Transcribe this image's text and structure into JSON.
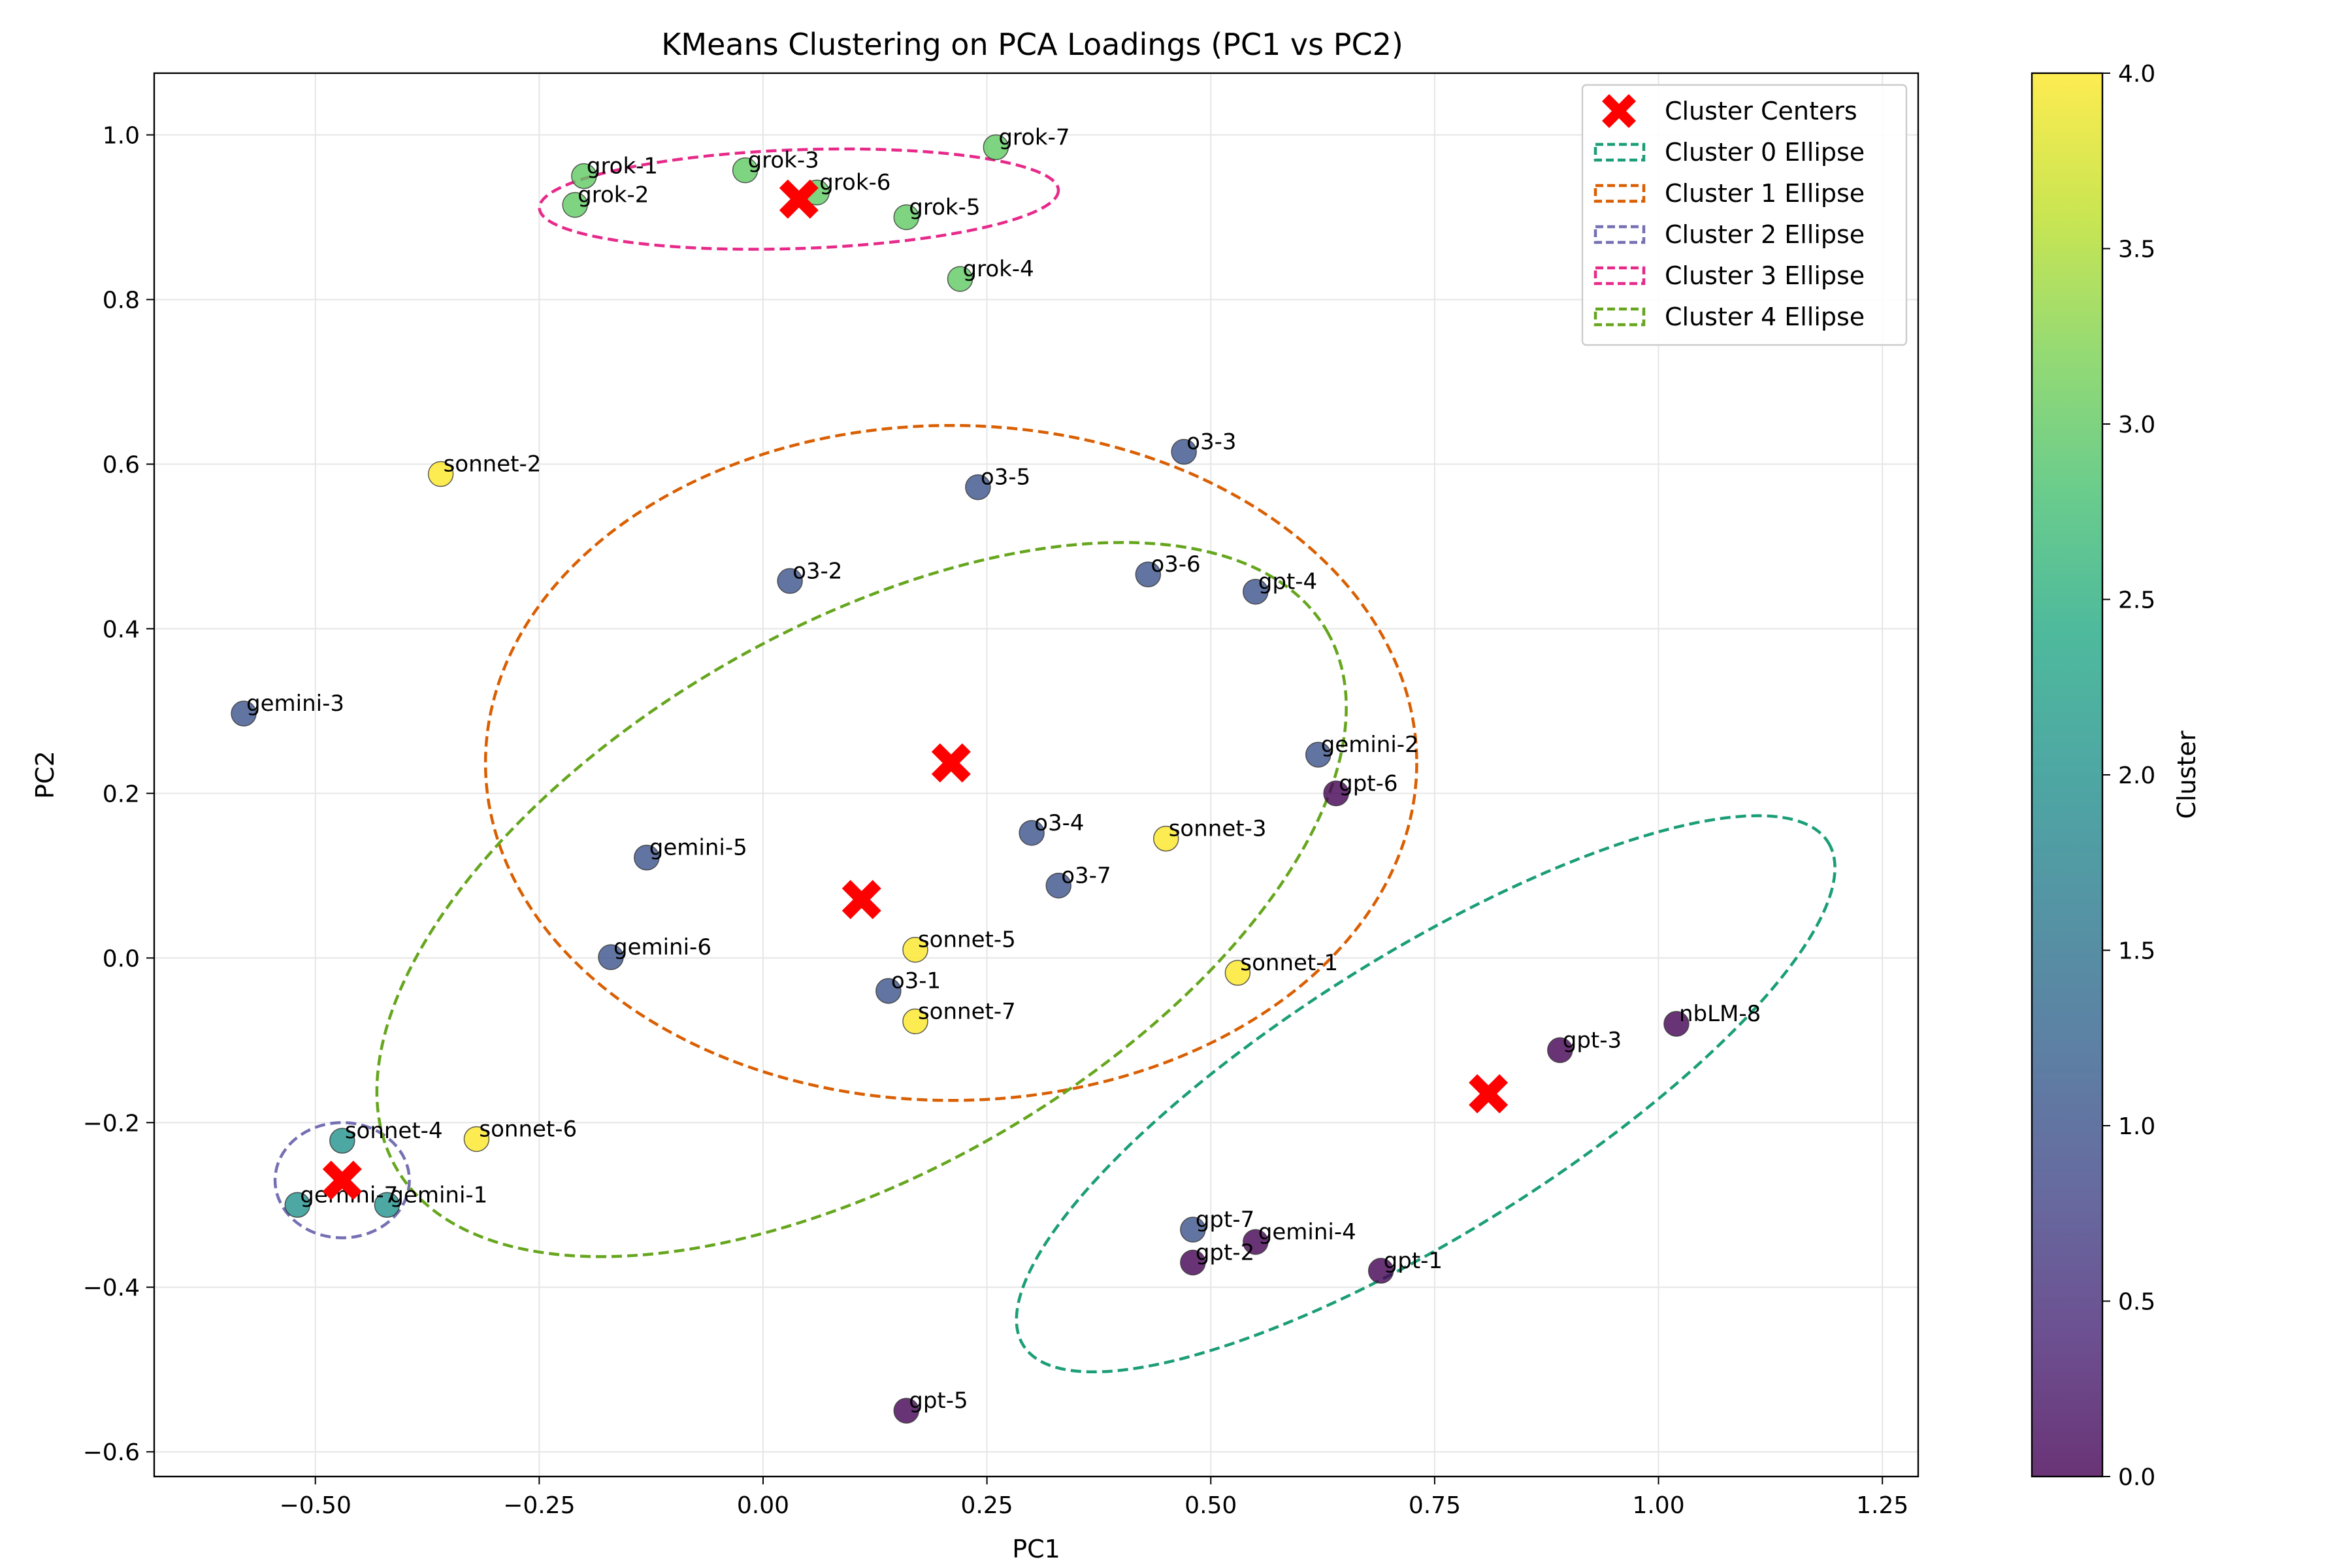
{
  "chart_data": {
    "type": "scatter",
    "title": "KMeans Clustering on PCA Loadings (PC1 vs PC2)",
    "xlabel": "PC1",
    "ylabel": "PC2",
    "xlim": [
      -0.68,
      1.29
    ],
    "ylim": [
      -0.63,
      1.075
    ],
    "xticks": [
      -0.5,
      -0.25,
      0.0,
      0.25,
      0.5,
      0.75,
      1.0,
      1.25
    ],
    "xtick_labels": [
      "−0.50",
      "−0.25",
      "0.00",
      "0.25",
      "0.50",
      "0.75",
      "1.00",
      "1.25"
    ],
    "yticks": [
      -0.6,
      -0.4,
      -0.2,
      0.0,
      0.2,
      0.4,
      0.6,
      0.8,
      1.0
    ],
    "ytick_labels": [
      "−0.6",
      "−0.4",
      "−0.2",
      "0.0",
      "0.2",
      "0.4",
      "0.6",
      "0.8",
      "1.0"
    ],
    "grid": true,
    "colors": {
      "c0": "#440154",
      "c1": "#3b528b",
      "c2": "#21918c",
      "c3": "#5ec962",
      "c4": "#fde725",
      "center": "#ff0000"
    },
    "points": [
      {
        "label": "grok-1",
        "x": -0.2,
        "y": 0.95,
        "cluster": 3
      },
      {
        "label": "grok-2",
        "x": -0.21,
        "y": 0.915,
        "cluster": 3
      },
      {
        "label": "grok-3",
        "x": -0.02,
        "y": 0.957,
        "cluster": 3
      },
      {
        "label": "grok-6",
        "x": 0.06,
        "y": 0.93,
        "cluster": 3
      },
      {
        "label": "grok-7",
        "x": 0.26,
        "y": 0.985,
        "cluster": 3
      },
      {
        "label": "grok-5",
        "x": 0.16,
        "y": 0.9,
        "cluster": 3
      },
      {
        "label": "grok-4",
        "x": 0.22,
        "y": 0.825,
        "cluster": 3
      },
      {
        "label": "sonnet-2",
        "x": -0.36,
        "y": 0.588,
        "cluster": 4
      },
      {
        "label": "o3-3",
        "x": 0.47,
        "y": 0.615,
        "cluster": 1
      },
      {
        "label": "o3-5",
        "x": 0.24,
        "y": 0.572,
        "cluster": 1
      },
      {
        "label": "o3-2",
        "x": 0.03,
        "y": 0.458,
        "cluster": 1
      },
      {
        "label": "o3-6",
        "x": 0.43,
        "y": 0.466,
        "cluster": 1
      },
      {
        "label": "gpt-4",
        "x": 0.55,
        "y": 0.445,
        "cluster": 1
      },
      {
        "label": "gemini-3",
        "x": -0.58,
        "y": 0.297,
        "cluster": 1
      },
      {
        "label": "gemini-2",
        "x": 0.62,
        "y": 0.247,
        "cluster": 1
      },
      {
        "label": "gpt-6",
        "x": 0.64,
        "y": 0.2,
        "cluster": 0
      },
      {
        "label": "o3-4",
        "x": 0.3,
        "y": 0.152,
        "cluster": 1
      },
      {
        "label": "sonnet-3",
        "x": 0.45,
        "y": 0.145,
        "cluster": 4
      },
      {
        "label": "gemini-5",
        "x": -0.13,
        "y": 0.122,
        "cluster": 1
      },
      {
        "label": "o3-7",
        "x": 0.33,
        "y": 0.088,
        "cluster": 1
      },
      {
        "label": "sonnet-5",
        "x": 0.17,
        "y": 0.01,
        "cluster": 4
      },
      {
        "label": "gemini-6",
        "x": -0.17,
        "y": 0.001,
        "cluster": 1
      },
      {
        "label": "sonnet-1",
        "x": 0.53,
        "y": -0.018,
        "cluster": 4
      },
      {
        "label": "o3-1",
        "x": 0.14,
        "y": -0.04,
        "cluster": 1
      },
      {
        "label": "sonnet-7",
        "x": 0.17,
        "y": -0.077,
        "cluster": 4
      },
      {
        "label": "nbLM-8",
        "x": 1.02,
        "y": -0.08,
        "cluster": 0
      },
      {
        "label": "gpt-3",
        "x": 0.89,
        "y": -0.112,
        "cluster": 0
      },
      {
        "label": "sonnet-4",
        "x": -0.47,
        "y": -0.222,
        "cluster": 2
      },
      {
        "label": "sonnet-6",
        "x": -0.32,
        "y": -0.22,
        "cluster": 4
      },
      {
        "label": "gemini-7",
        "x": -0.52,
        "y": -0.3,
        "cluster": 2
      },
      {
        "label": "gemini-1",
        "x": -0.42,
        "y": -0.3,
        "cluster": 2
      },
      {
        "label": "gpt-7",
        "x": 0.48,
        "y": -0.33,
        "cluster": 1
      },
      {
        "label": "gemini-4",
        "x": 0.55,
        "y": -0.345,
        "cluster": 0
      },
      {
        "label": "gpt-2",
        "x": 0.48,
        "y": -0.37,
        "cluster": 0
      },
      {
        "label": "gpt-1",
        "x": 0.69,
        "y": -0.38,
        "cluster": 0
      },
      {
        "label": "gpt-5",
        "x": 0.16,
        "y": -0.55,
        "cluster": 0
      }
    ],
    "centers": [
      {
        "cluster": 0,
        "x": 0.81,
        "y": -0.165
      },
      {
        "cluster": 1,
        "x": 0.21,
        "y": 0.237
      },
      {
        "cluster": 2,
        "x": -0.47,
        "y": -0.27
      },
      {
        "cluster": 3,
        "x": 0.04,
        "y": 0.922
      },
      {
        "cluster": 4,
        "x": 0.11,
        "y": 0.071
      }
    ],
    "ellipses": [
      {
        "cluster": 0,
        "cx": 0.74,
        "cy": -0.165,
        "rx": 0.53,
        "ry": 0.17,
        "angle_deg": -32,
        "color": "#1b9e77"
      },
      {
        "cluster": 1,
        "cx": 0.21,
        "cy": 0.237,
        "rx": 0.52,
        "ry": 0.41,
        "angle_deg": 0,
        "color": "#d95f02"
      },
      {
        "cluster": 2,
        "cx": -0.47,
        "cy": -0.27,
        "rx": 0.075,
        "ry": 0.07,
        "angle_deg": 0,
        "color": "#7570b3"
      },
      {
        "cluster": 3,
        "cx": 0.04,
        "cy": 0.922,
        "rx": 0.29,
        "ry": 0.06,
        "angle_deg": -2,
        "color": "#e7298a"
      },
      {
        "cluster": 4,
        "cx": 0.11,
        "cy": 0.071,
        "rx": 0.6,
        "ry": 0.33,
        "angle_deg": -30,
        "color": "#66a61e"
      }
    ],
    "legend": {
      "position": "top-right",
      "entries": [
        "Cluster Centers",
        "Cluster 0 Ellipse",
        "Cluster 1 Ellipse",
        "Cluster 2 Ellipse",
        "Cluster 3 Ellipse",
        "Cluster 4 Ellipse"
      ]
    },
    "colorbar": {
      "label": "Cluster",
      "min": 0.0,
      "max": 4.0,
      "ticks": [
        0.0,
        0.5,
        1.0,
        1.5,
        2.0,
        2.5,
        3.0,
        3.5,
        4.0
      ],
      "tick_labels": [
        "0.0",
        "0.5",
        "1.0",
        "1.5",
        "2.0",
        "2.5",
        "3.0",
        "3.5",
        "4.0"
      ]
    }
  }
}
